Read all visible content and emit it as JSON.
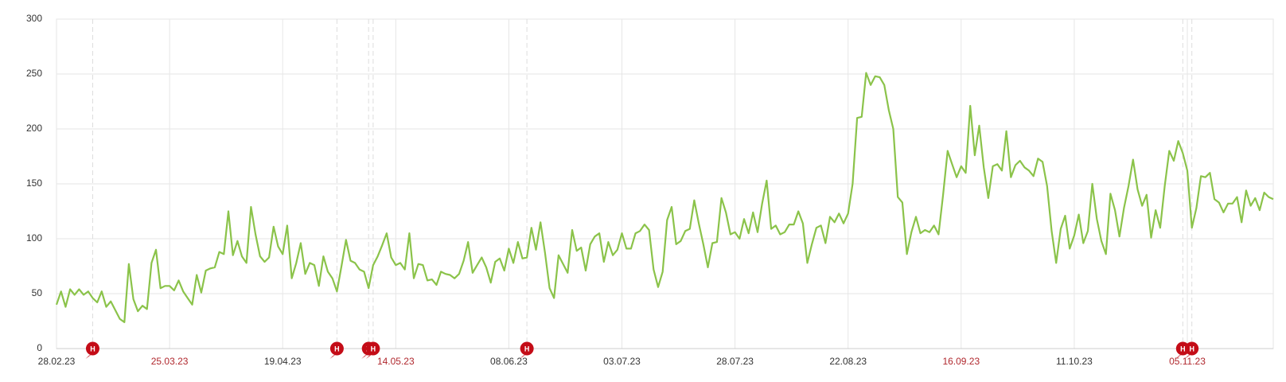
{
  "chart_data": {
    "type": "line",
    "categories": [
      "28.02.23",
      null,
      null,
      null,
      null,
      null,
      null,
      null,
      null,
      null,
      null,
      null,
      null,
      null,
      null,
      null,
      null,
      null,
      null,
      null,
      null,
      null,
      null,
      null,
      null,
      "25.03.23",
      null,
      null,
      null,
      null,
      null,
      null,
      null,
      null,
      null,
      null,
      null,
      null,
      null,
      null,
      null,
      null,
      null,
      null,
      null,
      null,
      null,
      null,
      null,
      null,
      "19.04.23",
      null,
      null,
      null,
      null,
      null,
      null,
      null,
      null,
      null,
      null,
      null,
      null,
      null,
      null,
      null,
      null,
      null,
      null,
      null,
      null,
      null,
      null,
      null,
      null,
      "14.05.23",
      null,
      null,
      null,
      null,
      null,
      null,
      null,
      null,
      null,
      null,
      null,
      null,
      null,
      null,
      null,
      null,
      null,
      null,
      null,
      null,
      null,
      null,
      null,
      null,
      "08.06.23",
      null,
      null,
      null,
      null,
      null,
      null,
      null,
      null,
      null,
      null,
      null,
      null,
      null,
      null,
      null,
      null,
      null,
      null,
      null,
      null,
      null,
      null,
      null,
      null,
      "03.07.23",
      null,
      null,
      null,
      null,
      null,
      null,
      null,
      null,
      null,
      null,
      null,
      null,
      null,
      null,
      null,
      null,
      null,
      null,
      null,
      null,
      null,
      null,
      null,
      null,
      "28.07.23",
      null,
      null,
      null,
      null,
      null,
      null,
      null,
      null,
      null,
      null,
      null,
      null,
      null,
      null,
      null,
      null,
      null,
      null,
      null,
      null,
      null,
      null,
      null,
      null,
      "22.08.23",
      null,
      null,
      null,
      null,
      null,
      null,
      null,
      null,
      null,
      null,
      null,
      null,
      null,
      null,
      null,
      null,
      null,
      null,
      null,
      null,
      null,
      null,
      null,
      null,
      "16.09.23",
      null,
      null,
      null,
      null,
      null,
      null,
      null,
      null,
      null,
      null,
      null,
      null,
      null,
      null,
      null,
      null,
      null,
      null,
      null,
      null,
      null,
      null,
      null,
      null,
      "11.10.23",
      null,
      null,
      null,
      null,
      null,
      null,
      null,
      null,
      null,
      null,
      null,
      null,
      null,
      null,
      null,
      null,
      null,
      null,
      null,
      null,
      null,
      null,
      null,
      null,
      "05.11.23",
      null,
      null,
      null,
      null,
      null,
      null,
      null,
      null,
      null,
      null,
      null,
      null,
      null,
      null,
      null,
      null,
      null,
      null,
      null
    ],
    "series": [
      {
        "color": "#8bc34a",
        "values": [
          40,
          52,
          38,
          54,
          49,
          54,
          49,
          52,
          46,
          42,
          52,
          38,
          43,
          35,
          27,
          24,
          77,
          45,
          34,
          39,
          36,
          78,
          90,
          55,
          57,
          57,
          53,
          62,
          52,
          46,
          40,
          67,
          51,
          71,
          73,
          74,
          88,
          86,
          125,
          85,
          98,
          84,
          78,
          129,
          104,
          84,
          79,
          83,
          111,
          93,
          86,
          112,
          64,
          78,
          96,
          68,
          78,
          76,
          57,
          84,
          70,
          64,
          52,
          75,
          99,
          80,
          78,
          72,
          70,
          55,
          76,
          84,
          94,
          105,
          83,
          76,
          78,
          72,
          105,
          64,
          77,
          76,
          62,
          63,
          58,
          70,
          68,
          67,
          64,
          68,
          80,
          97,
          69,
          76,
          83,
          74,
          60,
          79,
          82,
          71,
          91,
          78,
          97,
          82,
          83,
          110,
          90,
          115,
          87,
          55,
          46,
          85,
          77,
          69,
          108,
          89,
          92,
          71,
          95,
          102,
          105,
          79,
          97,
          85,
          90,
          105,
          91,
          91,
          105,
          107,
          113,
          108,
          72,
          56,
          70,
          117,
          129,
          95,
          98,
          107,
          109,
          135,
          114,
          95,
          74,
          96,
          97,
          137,
          124,
          104,
          106,
          100,
          118,
          105,
          124,
          106,
          132,
          153,
          109,
          112,
          104,
          106,
          113,
          113,
          125,
          114,
          78,
          95,
          110,
          112,
          96,
          120,
          115,
          123,
          114,
          123,
          150,
          210,
          211,
          251,
          240,
          248,
          247,
          240,
          217,
          200,
          138,
          133,
          86,
          106,
          120,
          105,
          108,
          106,
          112,
          104,
          140,
          180,
          168,
          156,
          166,
          160,
          221,
          176,
          203,
          165,
          137,
          166,
          168,
          162,
          198,
          156,
          167,
          171,
          165,
          162,
          157,
          173,
          170,
          148,
          107,
          78,
          109,
          121,
          91,
          103,
          122,
          96,
          107,
          150,
          118,
          98,
          86,
          141,
          126,
          102,
          128,
          148,
          172,
          145,
          130,
          140,
          101,
          126,
          110,
          148,
          180,
          171,
          189,
          178,
          162,
          110,
          128,
          157,
          156,
          160,
          136,
          133,
          124,
          132,
          132,
          138,
          115,
          144,
          130,
          137,
          126,
          142,
          138,
          136
        ]
      }
    ],
    "ylim": [
      0,
      300
    ],
    "yticks": [
      0,
      50,
      100,
      150,
      200,
      250,
      300
    ],
    "grid": true,
    "highlighted_ticks": [
      25,
      75,
      200,
      250
    ],
    "highlight_color": "#b0282e",
    "events": [
      {
        "index": 8,
        "label": "H"
      },
      {
        "index": 62,
        "label": "H"
      },
      {
        "index": 69,
        "label": "H"
      },
      {
        "index": 70,
        "label": "H"
      },
      {
        "index": 104,
        "label": "H"
      },
      {
        "index": 249,
        "label": "H"
      },
      {
        "index": 251,
        "label": "H"
      }
    ],
    "event_color": "#c40c17"
  }
}
